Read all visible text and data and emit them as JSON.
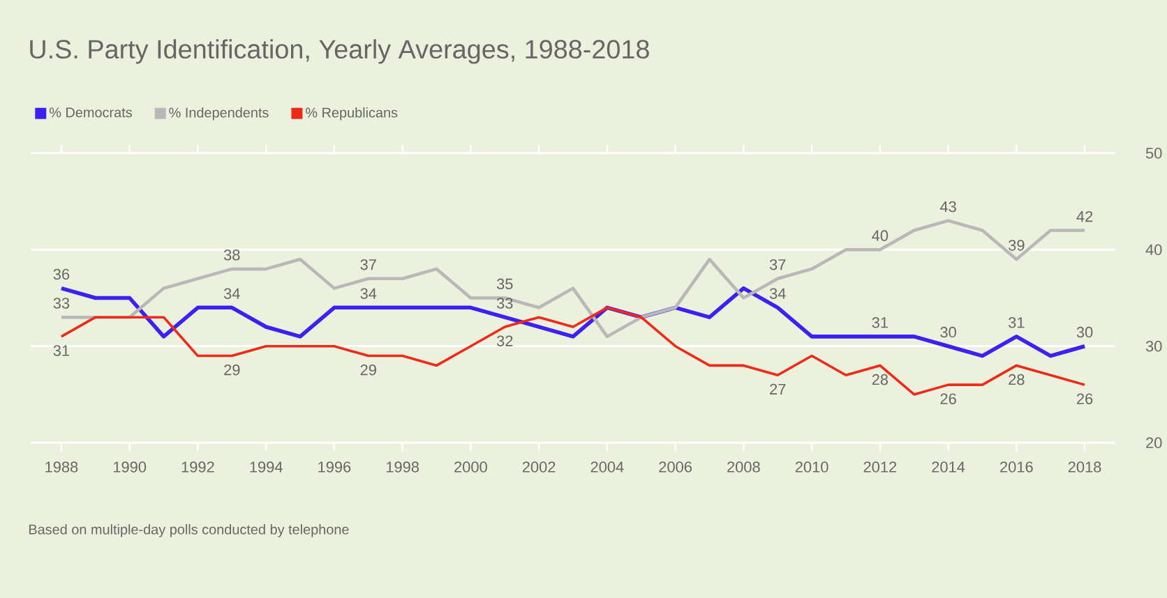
{
  "chart_data": {
    "type": "line",
    "title": "U.S. Party Identification, Yearly Averages, 1988-2018",
    "x": [
      1988,
      1989,
      1990,
      1991,
      1992,
      1993,
      1994,
      1995,
      1996,
      1997,
      1998,
      1999,
      2000,
      2001,
      2002,
      2003,
      2004,
      2005,
      2006,
      2007,
      2008,
      2009,
      2010,
      2011,
      2012,
      2013,
      2014,
      2015,
      2016,
      2017,
      2018
    ],
    "series": [
      {
        "name": "% Democrats",
        "color": "#4020f0",
        "values": [
          36,
          35,
          35,
          31,
          34,
          34,
          32,
          31,
          34,
          34,
          34,
          34,
          34,
          33,
          32,
          31,
          34,
          33,
          34,
          33,
          36,
          34,
          31,
          31,
          31,
          31,
          30,
          29,
          31,
          29,
          30
        ],
        "value_labels": [
          "36",
          null,
          null,
          null,
          null,
          "34",
          null,
          null,
          null,
          "34",
          null,
          null,
          null,
          "33",
          null,
          null,
          null,
          null,
          null,
          null,
          null,
          "34",
          null,
          null,
          "31",
          null,
          "30",
          null,
          "31",
          null,
          "30"
        ]
      },
      {
        "name": "% Independents",
        "color": "#b8b8b8",
        "values": [
          33,
          33,
          33,
          36,
          37,
          38,
          38,
          39,
          36,
          37,
          37,
          38,
          35,
          35,
          34,
          36,
          31,
          33,
          34,
          39,
          35,
          37,
          38,
          40,
          40,
          42,
          43,
          42,
          39,
          42,
          42
        ],
        "value_labels": [
          "33",
          null,
          null,
          null,
          null,
          "38",
          null,
          null,
          null,
          "37",
          null,
          null,
          null,
          "35",
          null,
          null,
          null,
          null,
          null,
          null,
          null,
          "37",
          null,
          null,
          "40",
          null,
          "43",
          null,
          "39",
          null,
          "42"
        ]
      },
      {
        "name": "% Republicans",
        "color": "#f02a1a",
        "values": [
          31,
          33,
          33,
          33,
          29,
          29,
          30,
          30,
          30,
          29,
          29,
          28,
          30,
          32,
          33,
          32,
          34,
          33,
          30,
          28,
          28,
          27,
          29,
          27,
          28,
          25,
          26,
          26,
          28,
          27,
          26
        ],
        "value_labels": [
          "31",
          null,
          null,
          null,
          null,
          "29",
          null,
          null,
          null,
          "29",
          null,
          null,
          null,
          "32",
          null,
          null,
          null,
          null,
          null,
          null,
          null,
          "27",
          null,
          null,
          "28",
          null,
          "26",
          null,
          "28",
          null,
          "26"
        ]
      }
    ],
    "xlim": [
      1987.1,
      2018.9
    ],
    "xticks": [
      1988,
      1990,
      1992,
      1994,
      1996,
      1998,
      2000,
      2002,
      2004,
      2006,
      2008,
      2010,
      2012,
      2014,
      2016,
      2018
    ],
    "ylim": [
      20,
      50
    ],
    "yticks": [
      20,
      30,
      40,
      50
    ],
    "grid": "y",
    "legend": "top left",
    "marker": "none",
    "line_style": "solid",
    "annotations": [
      "Based on multiple-day polls conducted by telephone"
    ]
  }
}
